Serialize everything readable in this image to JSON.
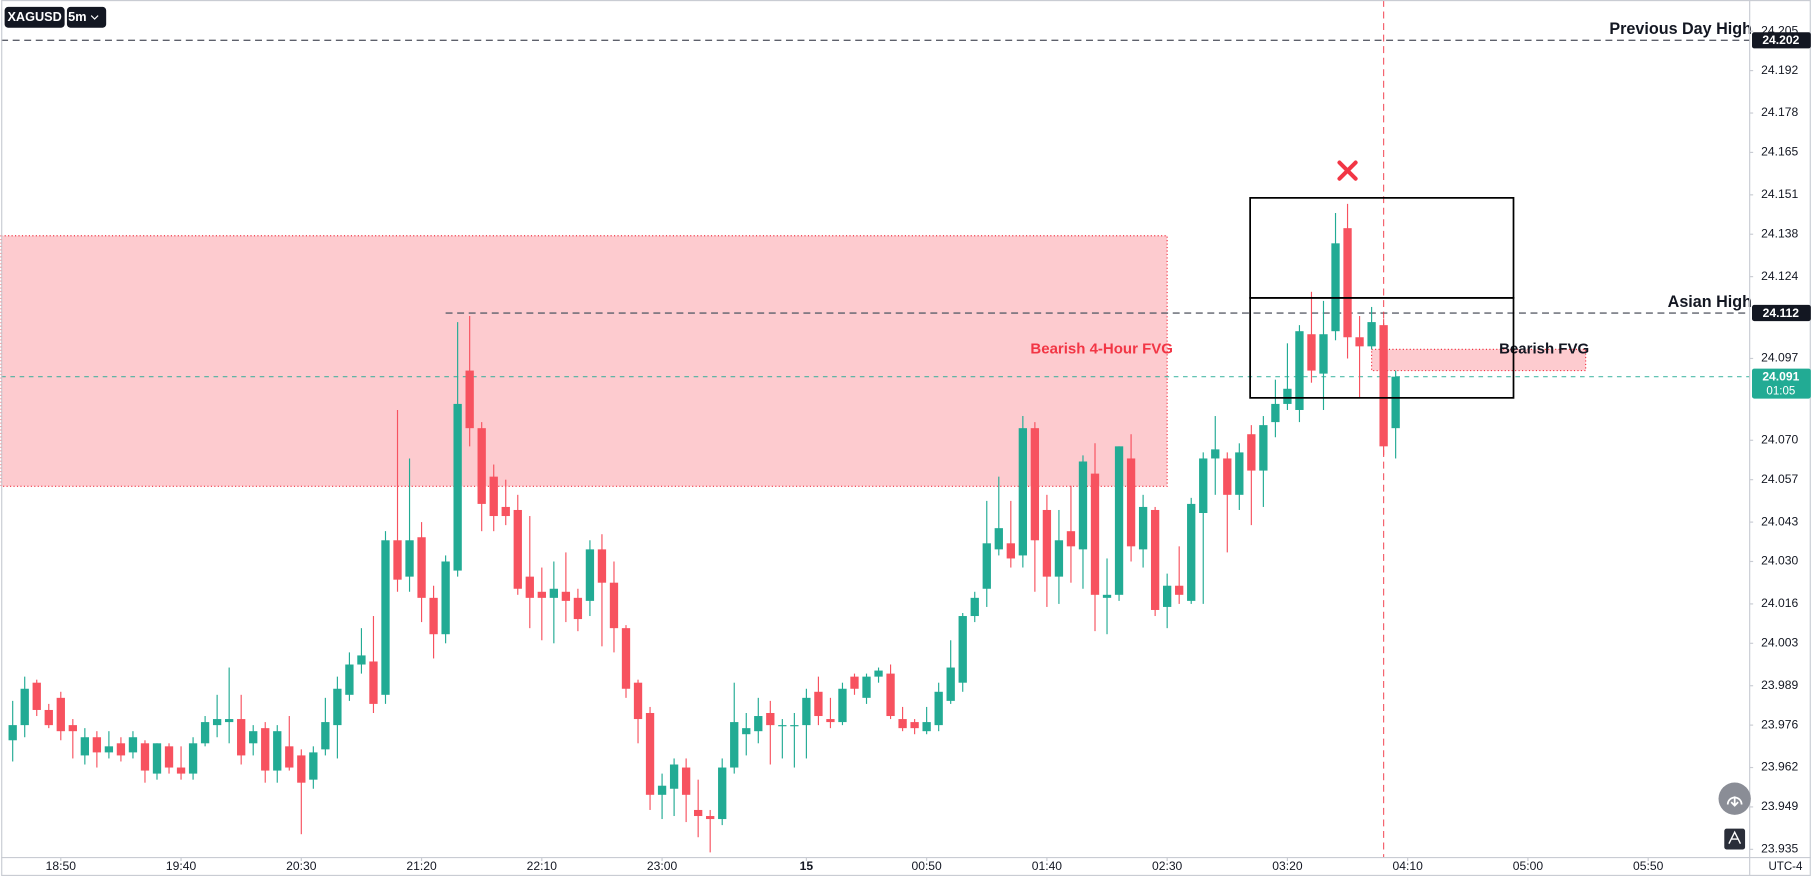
{
  "symbol": "XAGUSD",
  "interval": "5m",
  "timezone": "UTC-4",
  "chart_data": {
    "type": "candlestick",
    "up_color": "#22ab94",
    "down_color": "#f7525f",
    "open": [
      23.971,
      23.976,
      23.99,
      23.981,
      23.985,
      23.976,
      23.966,
      23.972,
      23.967,
      23.97,
      23.967,
      23.97,
      23.96,
      23.969,
      23.962,
      23.96,
      23.97,
      23.976,
      23.977,
      23.978,
      23.97,
      23.975,
      23.961,
      23.969,
      23.966,
      23.958,
      23.968,
      23.976,
      23.986,
      23.996,
      23.997,
      23.986,
      24.037,
      24.025,
      24.038,
      24.018,
      24.006,
      24.027,
      24.093,
      24.074,
      24.058,
      24.048,
      24.047,
      24.025,
      24.02,
      24.018,
      24.02,
      24.018,
      24.017,
      24.034,
      24.023,
      24.008,
      23.99,
      23.98,
      23.953,
      23.955,
      23.962,
      23.948,
      23.946,
      23.945,
      23.962,
      23.973,
      23.974,
      23.98,
      23.976,
      23.976,
      23.976,
      23.987,
      23.978,
      23.977,
      23.992,
      23.985,
      23.992,
      23.993,
      23.978,
      23.977,
      23.974,
      23.976,
      23.984,
      23.99,
      24.012,
      24.021,
      24.034,
      24.036,
      24.032,
      24.074,
      24.047,
      24.025,
      24.04,
      24.034,
      24.059,
      24.018,
      24.019,
      24.064,
      24.034,
      24.047,
      24.015,
      24.022,
      24.017,
      24.046,
      24.064,
      24.064,
      24.052,
      24.072,
      24.06,
      24.076,
      24.082,
      24.08,
      24.105,
      24.092,
      24.106,
      24.14,
      24.104,
      24.101,
      24.108,
      24.074
    ],
    "high": [
      23.984,
      23.992,
      23.991,
      23.983,
      23.987,
      23.978,
      23.975,
      23.974,
      23.974,
      23.972,
      23.974,
      23.971,
      23.97,
      23.97,
      23.969,
      23.972,
      23.979,
      23.986,
      23.995,
      23.986,
      23.976,
      23.977,
      23.976,
      23.979,
      23.968,
      23.969,
      23.985,
      23.992,
      24.0,
      24.008,
      24.012,
      24.04,
      24.08,
      24.064,
      24.043,
      24.022,
      24.032,
      24.109,
      24.111,
      24.076,
      24.062,
      24.057,
      24.052,
      24.045,
      24.028,
      24.03,
      24.033,
      24.021,
      24.037,
      24.039,
      24.03,
      24.009,
      23.991,
      23.982,
      23.96,
      23.965,
      23.965,
      23.958,
      23.948,
      23.965,
      23.99,
      23.98,
      23.985,
      23.984,
      23.978,
      23.98,
      23.988,
      23.992,
      23.985,
      23.99,
      23.993,
      23.993,
      23.995,
      23.996,
      23.982,
      23.978,
      23.982,
      23.99,
      24.004,
      24.013,
      24.02,
      24.05,
      24.058,
      24.05,
      24.078,
      24.076,
      24.052,
      24.047,
      24.055,
      24.065,
      24.069,
      24.031,
      24.068,
      24.072,
      24.052,
      24.048,
      24.026,
      24.035,
      24.051,
      24.066,
      24.078,
      24.066,
      24.069,
      24.075,
      24.078,
      24.09,
      24.102,
      24.108,
      24.119,
      24.116,
      24.145,
      24.148,
      24.111,
      24.114,
      24.11,
      24.093
    ],
    "low": [
      23.964,
      23.972,
      23.979,
      23.975,
      23.971,
      23.965,
      23.963,
      23.962,
      23.965,
      23.964,
      23.965,
      23.957,
      23.958,
      23.96,
      23.958,
      23.958,
      23.969,
      23.972,
      23.97,
      23.963,
      23.966,
      23.957,
      23.957,
      23.961,
      23.94,
      23.955,
      23.966,
      23.965,
      23.984,
      23.993,
      23.98,
      23.983,
      24.02,
      24.02,
      24.01,
      23.998,
      24.003,
      24.025,
      24.068,
      24.04,
      24.04,
      24.042,
      24.019,
      24.008,
      24.004,
      24.003,
      24.01,
      24.007,
      24.012,
      24.002,
      24.0,
      23.985,
      23.97,
      23.948,
      23.945,
      23.946,
      23.944,
      23.939,
      23.934,
      23.943,
      23.96,
      23.966,
      23.97,
      23.963,
      23.965,
      23.962,
      23.965,
      23.976,
      23.975,
      23.976,
      23.986,
      23.983,
      23.99,
      23.978,
      23.974,
      23.973,
      23.973,
      23.974,
      23.983,
      23.987,
      24.01,
      24.015,
      24.032,
      24.028,
      24.028,
      24.02,
      24.015,
      24.016,
      24.023,
      24.021,
      24.007,
      24.006,
      24.017,
      24.03,
      24.028,
      24.012,
      24.008,
      24.016,
      24.016,
      24.016,
      24.052,
      24.033,
      24.047,
      24.042,
      24.048,
      24.071,
      24.08,
      24.076,
      24.089,
      24.08,
      24.103,
      24.097,
      24.084,
      24.1,
      24.065,
      24.064
    ],
    "close": [
      23.976,
      23.988,
      23.981,
      23.976,
      23.974,
      23.974,
      23.972,
      23.967,
      23.969,
      23.966,
      23.972,
      23.961,
      23.97,
      23.962,
      23.96,
      23.97,
      23.977,
      23.978,
      23.978,
      23.966,
      23.974,
      23.961,
      23.974,
      23.962,
      23.957,
      23.967,
      23.977,
      23.988,
      23.996,
      23.999,
      23.983,
      24.037,
      24.024,
      24.037,
      24.018,
      24.006,
      24.03,
      24.082,
      24.074,
      24.049,
      24.045,
      24.045,
      24.021,
      24.018,
      24.018,
      24.021,
      24.017,
      24.011,
      24.034,
      24.023,
      24.008,
      23.988,
      23.978,
      23.953,
      23.956,
      23.963,
      23.953,
      23.946,
      23.945,
      23.962,
      23.977,
      23.975,
      23.979,
      23.976,
      23.976,
      23.976,
      23.985,
      23.979,
      23.977,
      23.988,
      23.988,
      23.992,
      23.994,
      23.979,
      23.975,
      23.975,
      23.977,
      23.987,
      23.995,
      24.012,
      24.018,
      24.036,
      24.041,
      24.031,
      24.074,
      24.037,
      24.025,
      24.037,
      24.035,
      24.063,
      24.019,
      24.019,
      24.068,
      24.035,
      24.048,
      24.014,
      24.022,
      24.019,
      24.049,
      24.064,
      24.067,
      24.052,
      24.066,
      24.06,
      24.075,
      24.082,
      24.087,
      24.106,
      24.093,
      24.105,
      24.135,
      24.104,
      24.101,
      24.109,
      24.068,
      24.091
    ],
    "xlim": [
      -0.96,
      144.44
    ],
    "xticks": [
      {
        "value": 4,
        "label": "18:50"
      },
      {
        "value": 14,
        "label": "19:40"
      },
      {
        "value": 24,
        "label": "20:30"
      },
      {
        "value": 34,
        "label": "21:20"
      },
      {
        "value": 44,
        "label": "22:10"
      },
      {
        "value": 54,
        "label": "23:00"
      },
      {
        "value": 66,
        "label": "15"
      },
      {
        "value": 76,
        "label": "00:50"
      },
      {
        "value": 86,
        "label": "01:40"
      },
      {
        "value": 96,
        "label": "02:30"
      },
      {
        "value": 106,
        "label": "03:20"
      },
      {
        "value": 116,
        "label": "04:10"
      },
      {
        "value": 126,
        "label": "05:00"
      },
      {
        "value": 136,
        "label": "05:50"
      }
    ],
    "ylim": [
      23.9323,
      24.2153
    ],
    "yticks": [
      24.205,
      24.192,
      24.178,
      24.165,
      24.151,
      24.138,
      24.124,
      24.097,
      {
        "value": 24.07,
        "label": "24.070"
      },
      24.057,
      24.043,
      {
        "value": 24.03,
        "label": "24.030"
      },
      24.016,
      24.003,
      23.989,
      23.976,
      23.962,
      23.949,
      23.935
    ],
    "levels": [
      {
        "name": "Previous Day High",
        "value": 24.202,
        "start": -0.96
      },
      {
        "name": "Asian High",
        "value": 24.112,
        "start": 36
      }
    ],
    "current": {
      "value": 24.091,
      "countdown": "01:05"
    },
    "zones": [
      {
        "name": "Bearish 4-Hour FVG",
        "low": 24.0548,
        "high": 24.1375,
        "start": -0.96,
        "end": 96
      },
      {
        "name": "Bearish FVG",
        "low": 24.093,
        "high": 24.1,
        "start": 113,
        "end": 130.8
      }
    ],
    "boxes": [
      {
        "start": 102.9,
        "end": 124.8,
        "top": 24.15,
        "bottom": 24.117
      },
      {
        "start": 102.9,
        "end": 124.8,
        "top": 24.117,
        "bottom": 24.084
      }
    ],
    "marker": {
      "x": 111,
      "y": 24.159
    },
    "crosshair_x": 114
  }
}
